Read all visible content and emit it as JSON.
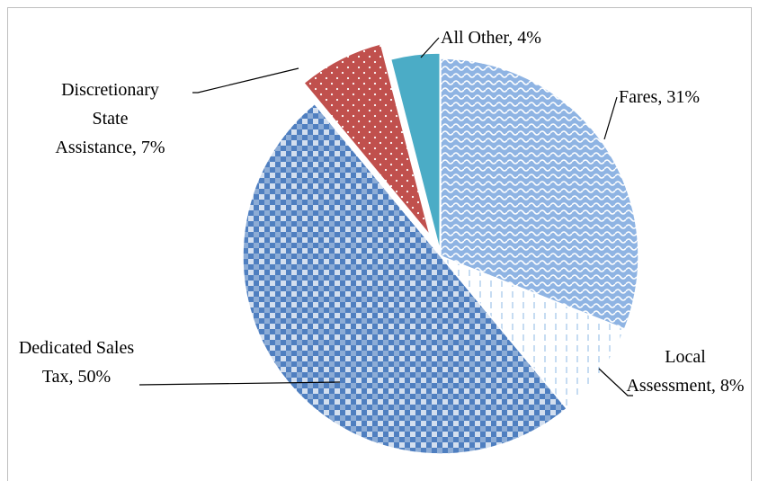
{
  "chart_data": {
    "type": "pie",
    "values": [
      31,
      8,
      50,
      7,
      4
    ],
    "value_labels": [
      "Fares, 31%",
      "Local Assessment, 8%",
      "Dedicated Sales Tax, 50%",
      "Discretionary State Assistance, 7%",
      "All Other, 4%"
    ],
    "colors": [
      "#8fb4e3",
      "#c6dcf2",
      "#4f7fc0",
      "#c0504d",
      "#4bacc6"
    ],
    "exploded": [
      false,
      false,
      false,
      true,
      true
    ]
  }
}
